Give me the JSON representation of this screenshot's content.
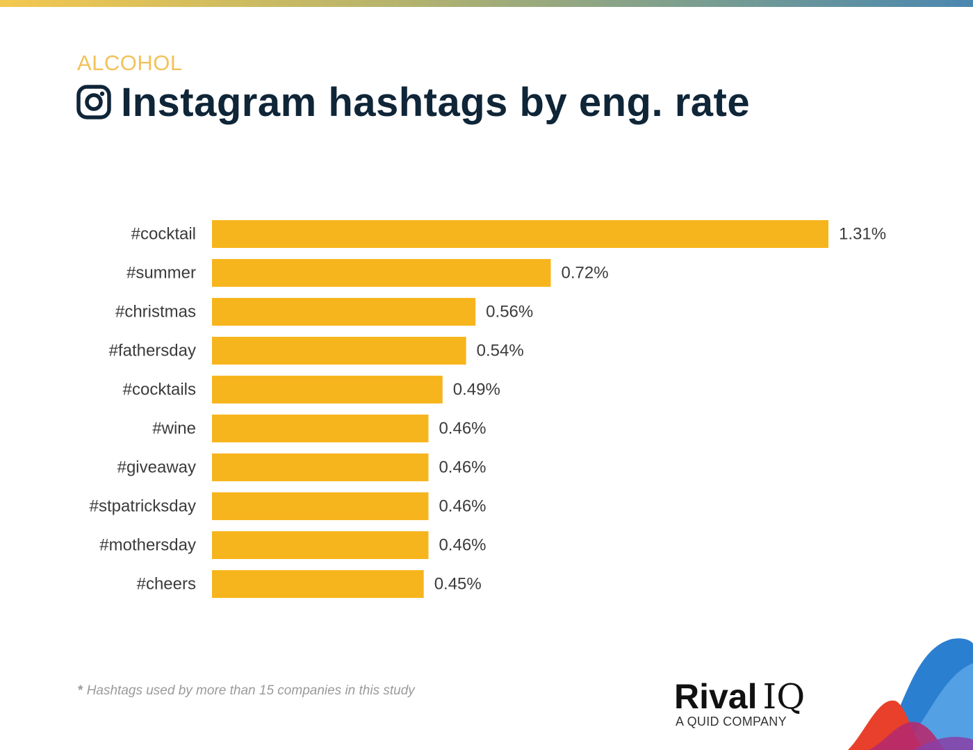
{
  "header": {
    "category": "ALCOHOL",
    "title": "Instagram hashtags by eng. rate",
    "title_icon": "instagram-icon"
  },
  "footnote": {
    "marker": "*",
    "text": "Hashtags used by more than 15 companies in this study"
  },
  "logo": {
    "name_part1": "Rival",
    "name_part2": "IQ",
    "tagline": "A QUID COMPANY"
  },
  "colors": {
    "bar": "#f7b51d",
    "category": "#f2c25a",
    "title": "#0f2538",
    "label": "#3b3b3b"
  },
  "chart_data": {
    "type": "bar",
    "orientation": "horizontal",
    "categories": [
      "#cocktail",
      "#summer",
      "#christmas",
      "#fathersday",
      "#cocktails",
      "#wine",
      "#giveaway",
      "#stpatricksday",
      "#mothersday",
      "#cheers"
    ],
    "values": [
      1.31,
      0.72,
      0.56,
      0.54,
      0.49,
      0.46,
      0.46,
      0.46,
      0.46,
      0.45
    ],
    "value_labels": [
      "1.31%",
      "0.72%",
      "0.56%",
      "0.54%",
      "0.49%",
      "0.46%",
      "0.46%",
      "0.46%",
      "0.46%",
      "0.45%"
    ],
    "title": "Instagram hashtags by eng. rate",
    "xlabel": "",
    "ylabel": "",
    "xlim": [
      0,
      1.31
    ],
    "grid": false,
    "legend": false
  }
}
